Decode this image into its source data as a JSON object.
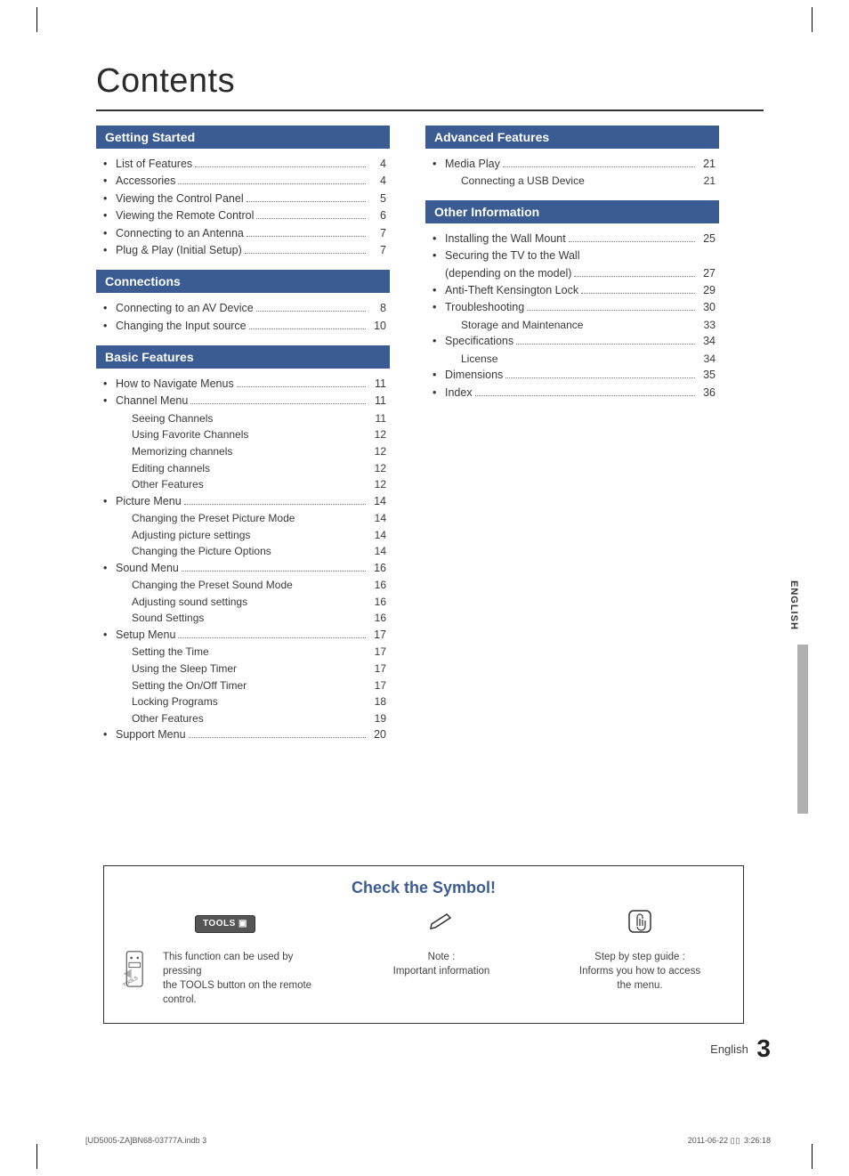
{
  "title": "Contents",
  "colors": {
    "section_header_bg": "#3a5c93",
    "section_header_fg": "#ffffff",
    "text": "#3a3a3a",
    "accent": "#3a5c93"
  },
  "sections_left": [
    {
      "header": "Getting Started",
      "items": [
        {
          "label": "List of Features",
          "page": "4",
          "dots": true
        },
        {
          "label": "Accessories",
          "page": "4",
          "dots": true
        },
        {
          "label": "Viewing the Control Panel",
          "page": "5",
          "dots": true
        },
        {
          "label": "Viewing the Remote Control",
          "page": "6",
          "dots": true
        },
        {
          "label": "Connecting to an Antenna",
          "page": "7",
          "dots": true
        },
        {
          "label": "Plug & Play (Initial Setup)",
          "page": "7",
          "dots": true
        }
      ]
    },
    {
      "header": "Connections",
      "items": [
        {
          "label": "Connecting to an AV Device",
          "page": "8",
          "dots": true
        },
        {
          "label": "Changing the Input source",
          "page": "10",
          "dots": true
        }
      ]
    },
    {
      "header": "Basic Features",
      "items": [
        {
          "label": "How to Navigate Menus",
          "page": "11",
          "dots": true
        },
        {
          "label": "Channel Menu",
          "page": "11",
          "dots": true,
          "subs": [
            {
              "label": "Seeing Channels",
              "page": "11"
            },
            {
              "label": "Using Favorite Channels",
              "page": "12"
            },
            {
              "label": "Memorizing channels",
              "page": "12"
            },
            {
              "label": "Editing channels",
              "page": "12"
            },
            {
              "label": "Other Features",
              "page": "12"
            }
          ]
        },
        {
          "label": "Picture Menu",
          "page": "14",
          "dots": true,
          "subs": [
            {
              "label": "Changing the Preset Picture Mode",
              "page": "14"
            },
            {
              "label": "Adjusting picture settings",
              "page": "14"
            },
            {
              "label": "Changing the Picture Options",
              "page": "14"
            }
          ]
        },
        {
          "label": "Sound Menu",
          "page": "16",
          "dots": true,
          "subs": [
            {
              "label": "Changing the Preset Sound Mode",
              "page": "16"
            },
            {
              "label": "Adjusting sound settings",
              "page": "16"
            },
            {
              "label": "Sound Settings",
              "page": "16"
            }
          ]
        },
        {
          "label": "Setup Menu",
          "page": "17",
          "dots": true,
          "subs": [
            {
              "label": "Setting the Time",
              "page": "17"
            },
            {
              "label": "Using the Sleep Timer",
              "page": "17"
            },
            {
              "label": "Setting the On/Off Timer",
              "page": "17"
            },
            {
              "label": "Locking Programs",
              "page": "18"
            },
            {
              "label": "Other Features",
              "page": "19"
            }
          ]
        },
        {
          "label": "Support Menu",
          "page": "20",
          "dots": true
        }
      ]
    }
  ],
  "sections_right": [
    {
      "header": "Advanced Features",
      "items": [
        {
          "label": "Media Play",
          "page": "21",
          "dots": true,
          "subs": [
            {
              "label": "Connecting a USB Device",
              "page": "21"
            }
          ]
        }
      ]
    },
    {
      "header": "Other Information",
      "items": [
        {
          "label": "Installing the Wall Mount",
          "page": "25",
          "dots": true
        },
        {
          "label": "Securing the TV to the Wall",
          "page": "",
          "dots": false,
          "cont": {
            "label": "(depending on the model)",
            "page": "27",
            "dots": true
          }
        },
        {
          "label": "Anti-Theft Kensington Lock",
          "page": "29",
          "dots": true
        },
        {
          "label": "Troubleshooting",
          "page": "30",
          "dots": true,
          "subs": [
            {
              "label": "Storage and Maintenance",
              "page": "33"
            }
          ]
        },
        {
          "label": "Specifications",
          "page": "34",
          "dots": true,
          "subs": [
            {
              "label": "License",
              "page": "34"
            }
          ]
        },
        {
          "label": "Dimensions",
          "page": "35",
          "dots": true
        },
        {
          "label": "Index",
          "page": "36",
          "dots": true
        }
      ]
    }
  ],
  "side_tab": {
    "language": "ENGLISH"
  },
  "symbol_box": {
    "title": "Check the Symbol!",
    "cols": [
      {
        "badge": "TOOLS",
        "desc_line1": "This function can be used by pressing",
        "desc_line2": "the TOOLS button on the remote",
        "desc_line3": "control."
      },
      {
        "desc_line1": "Note :",
        "desc_line2": "Important information"
      },
      {
        "desc_line1": "Step by step guide :",
        "desc_line2": "Informs you how to access",
        "desc_line3": "the menu."
      }
    ]
  },
  "footer": {
    "lang": "English",
    "page_number": "3"
  },
  "print_footer": {
    "left": "[UD5005-ZA]BN68-03777A.indb   3",
    "right_date": "2011-06-22   ",
    "right_time": "3:26:18",
    "blocks": "▯▯ "
  }
}
